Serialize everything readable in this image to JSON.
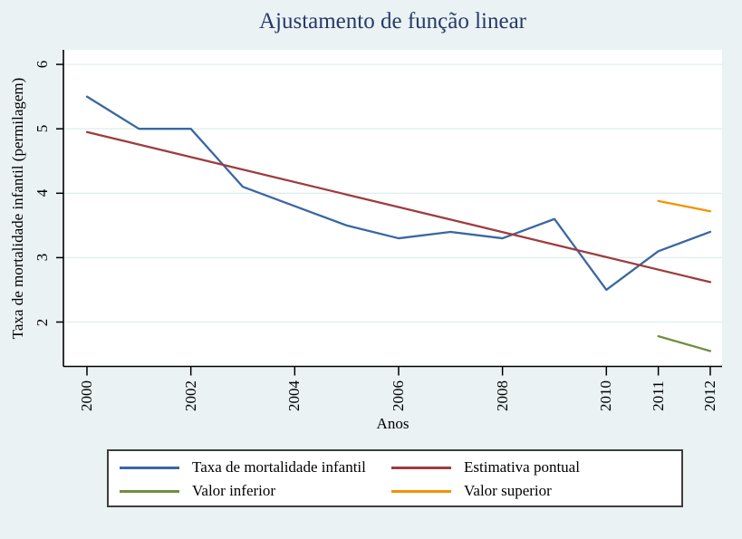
{
  "title": "Ajustamento de função linear",
  "colors": {
    "background": "#eaf2f3",
    "plot_background": "#ffffff",
    "gridline": "#e3edee",
    "axis": "#000000",
    "title_text": "#26396b",
    "series_blue": "#3a67a3",
    "series_maroon": "#9e3c3e",
    "series_green": "#6f8f3f",
    "series_orange": "#f39300"
  },
  "chart_data": {
    "type": "line",
    "title": "Ajustamento de função linear",
    "xlabel": "Anos",
    "ylabel": "Taxa de mortalidade infantil (permilagem)",
    "x_ticks": [
      "2000",
      "2002",
      "2004",
      "2006",
      "2008",
      "2010",
      "2011",
      "2012"
    ],
    "y_ticks": [
      "2",
      "3",
      "4",
      "5",
      "6"
    ],
    "xlim": [
      1999.5,
      2012.2
    ],
    "ylim": [
      1.3,
      6.2
    ],
    "grid": true,
    "legend_position": "bottom",
    "series": [
      {
        "name": "Taxa de mortalidade infantil",
        "color": "#3a67a3",
        "x": [
          2000,
          2001,
          2002,
          2003,
          2004,
          2005,
          2006,
          2007,
          2008,
          2009,
          2010,
          2011,
          2012
        ],
        "values": [
          5.5,
          5.0,
          5.0,
          4.1,
          3.8,
          3.5,
          3.3,
          3.4,
          3.3,
          3.6,
          2.5,
          3.1,
          3.4
        ]
      },
      {
        "name": "Estimativa pontual",
        "color": "#9e3c3e",
        "x": [
          2000,
          2012
        ],
        "values": [
          4.95,
          2.62
        ]
      },
      {
        "name": "Valor inferior",
        "color": "#6f8f3f",
        "x": [
          2011,
          2012
        ],
        "values": [
          1.78,
          1.55
        ]
      },
      {
        "name": "Valor superior",
        "color": "#f39300",
        "x": [
          2011,
          2012
        ],
        "values": [
          3.88,
          3.72
        ]
      }
    ]
  },
  "legend": {
    "entries": [
      {
        "label": "Taxa de mortalidade infantil",
        "color": "#3a67a3"
      },
      {
        "label": "Estimativa pontual",
        "color": "#9e3c3e"
      },
      {
        "label": "Valor inferior",
        "color": "#6f8f3f"
      },
      {
        "label": "Valor superior",
        "color": "#f39300"
      }
    ]
  }
}
